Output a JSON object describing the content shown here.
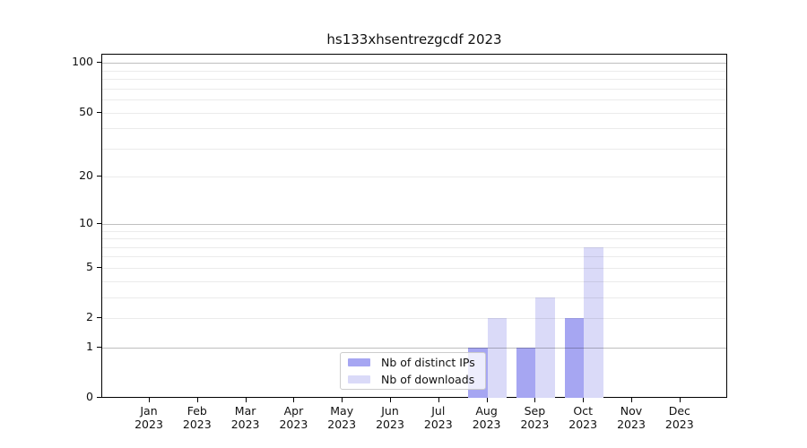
{
  "chart_data": {
    "type": "bar",
    "title": "hs133xhsentrezgcdf 2023",
    "categories": [
      "Jan 2023",
      "Feb 2023",
      "Mar 2023",
      "Apr 2023",
      "May 2023",
      "Jun 2023",
      "Jul 2023",
      "Aug 2023",
      "Sep 2023",
      "Oct 2023",
      "Nov 2023",
      "Dec 2023"
    ],
    "series": [
      {
        "name": "Nb of distinct IPs",
        "color": "#a6a6f2",
        "values": [
          0,
          0,
          0,
          0,
          0,
          0,
          0,
          1,
          1,
          2,
          0,
          0
        ]
      },
      {
        "name": "Nb of downloads",
        "color": "#dadaf8",
        "values": [
          0,
          0,
          0,
          0,
          0,
          0,
          0,
          2,
          3,
          7,
          0,
          0
        ]
      }
    ],
    "yscale": "log1p",
    "yticks": [
      0,
      1,
      2,
      5,
      10,
      20,
      50,
      100
    ],
    "ylim": [
      0,
      110
    ],
    "xlabel": "",
    "ylabel": "",
    "grid": "horizontal",
    "legend_position": "lower center"
  }
}
